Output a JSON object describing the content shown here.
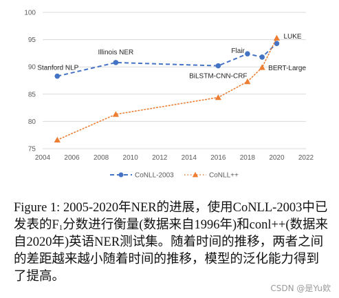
{
  "chart_data": {
    "type": "line",
    "title": "",
    "xlabel": "",
    "ylabel": "",
    "xlim": [
      2004,
      2022
    ],
    "ylim": [
      75,
      100
    ],
    "x_ticks": [
      2004,
      2006,
      2008,
      2010,
      2012,
      2014,
      2016,
      2018,
      2020,
      2022
    ],
    "y_ticks": [
      75,
      80,
      85,
      90,
      95,
      100
    ],
    "grid": "horizontal",
    "legend_position": "bottom",
    "series": [
      {
        "name": "CoNLL-2003",
        "color": "#4472C4",
        "line_style": "dashed",
        "marker": "circle",
        "points": [
          {
            "x": 2005,
            "y": 88.3
          },
          {
            "x": 2009,
            "y": 90.8
          },
          {
            "x": 2016,
            "y": 90.2
          },
          {
            "x": 2018,
            "y": 92.4
          },
          {
            "x": 2019,
            "y": 91.8
          },
          {
            "x": 2020,
            "y": 94.3
          }
        ]
      },
      {
        "name": "CoNLL++",
        "color": "#ED7D31",
        "line_style": "dotted",
        "marker": "triangle",
        "points": [
          {
            "x": 2005,
            "y": 76.6
          },
          {
            "x": 2009,
            "y": 81.3
          },
          {
            "x": 2016,
            "y": 84.4
          },
          {
            "x": 2018,
            "y": 87.3
          },
          {
            "x": 2019,
            "y": 89.9
          },
          {
            "x": 2020,
            "y": 95.3
          }
        ]
      }
    ],
    "annotations": [
      "Stanford NLP",
      "Illinois NER",
      "BiLSTM-CNN-CRF",
      "Flair",
      "LUKE",
      "BERT-Large"
    ]
  },
  "caption": {
    "part1": "Figure 1: 2005-2020年NER的进展，使用CoNLL-2003中已发表的F",
    "subscript": "1",
    "part2": "分数进行衡量(数据来自1996年)和conl++(数据来自2020年)英语NER测试集。随着时间的推移，两者之间的差距越来越小随着时间的推移，模型的泛化能力得到了提高。"
  },
  "watermark": "CSDN @是Yu欸"
}
